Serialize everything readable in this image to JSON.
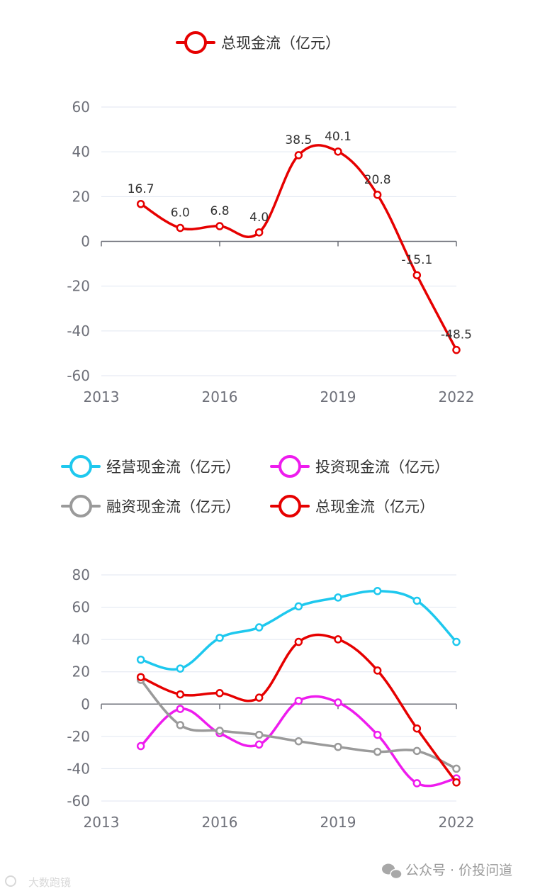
{
  "chart_data": [
    {
      "type": "line",
      "title": "",
      "x": [
        "2014",
        "2015",
        "2016",
        "2017",
        "2018",
        "2019",
        "2020",
        "2021",
        "2022"
      ],
      "xticks": [
        "2013",
        "2016",
        "2019",
        "2022"
      ],
      "xlim": [
        2013,
        2022
      ],
      "ylim": [
        -60,
        60
      ],
      "yticks": [
        "60",
        "40",
        "20",
        "0",
        "-20",
        "-40",
        "-60"
      ],
      "legend_position": "top",
      "series": [
        {
          "name": "总现金流（亿元）",
          "color": "#e60000",
          "values": [
            16.7,
            6.0,
            6.8,
            4.0,
            38.5,
            40.1,
            20.8,
            -15.1,
            -48.5
          ],
          "labels": [
            "16.7",
            "6.0",
            "6.8",
            "4.0",
            "38.5",
            "40.1",
            "20.8",
            "-15.1",
            "-48.5"
          ]
        }
      ]
    },
    {
      "type": "line",
      "title": "",
      "x": [
        "2014",
        "2015",
        "2016",
        "2017",
        "2018",
        "2019",
        "2020",
        "2021",
        "2022"
      ],
      "xticks": [
        "2013",
        "2016",
        "2019",
        "2022"
      ],
      "xlim": [
        2013,
        2022
      ],
      "ylim": [
        -60,
        80
      ],
      "yticks": [
        "80",
        "60",
        "40",
        "20",
        "0",
        "-20",
        "-40",
        "-60"
      ],
      "legend_position": "top",
      "series": [
        {
          "name": "经营现金流（亿元）",
          "color": "#1ec8ee",
          "values": [
            27.5,
            22.0,
            41.0,
            47.5,
            60.5,
            66.0,
            70.0,
            64.0,
            38.5
          ]
        },
        {
          "name": "投资现金流（亿元）",
          "color": "#ee1cee",
          "values": [
            -26.0,
            -3.0,
            -18.0,
            -25.0,
            2.0,
            1.0,
            -19.0,
            -49.0,
            -46.0
          ]
        },
        {
          "name": "融资现金流（亿元）",
          "color": "#9a9a9a",
          "values": [
            15.0,
            -13.0,
            -16.5,
            -19.0,
            -23.0,
            -26.5,
            -29.5,
            -29.0,
            -40.0
          ]
        },
        {
          "name": "总现金流（亿元）",
          "color": "#e60000",
          "values": [
            16.7,
            6.0,
            6.8,
            4.0,
            38.5,
            40.1,
            20.8,
            -15.1,
            -48.5
          ]
        }
      ]
    }
  ],
  "watermark": {
    "left": "大数跑镜",
    "right": "公众号 · 价投问道"
  }
}
